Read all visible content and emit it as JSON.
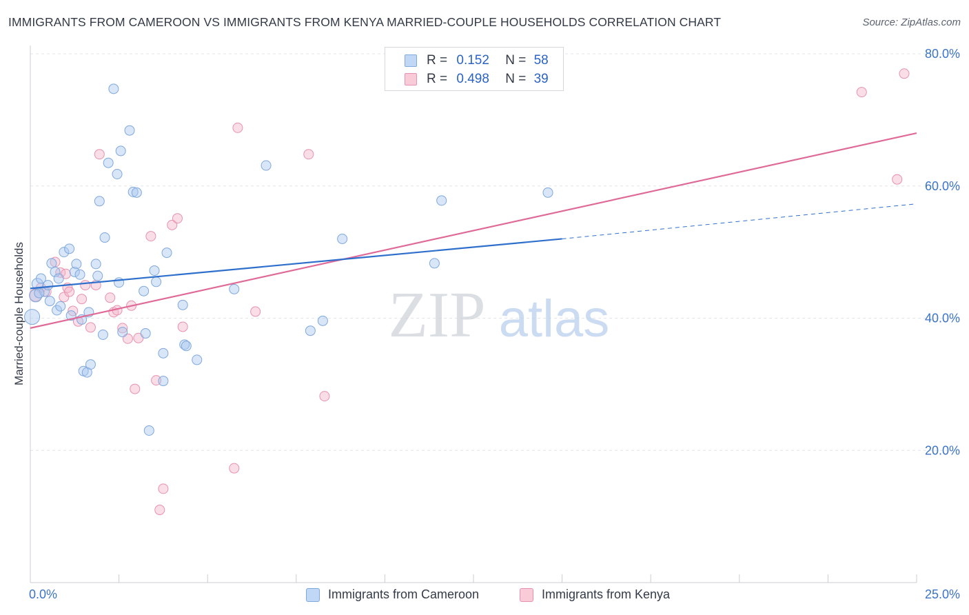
{
  "title": "IMMIGRANTS FROM CAMEROON VS IMMIGRANTS FROM KENYA MARRIED-COUPLE HOUSEHOLDS CORRELATION CHART",
  "source": "Source: ZipAtlas.com",
  "watermark": {
    "zip": "ZIP",
    "atlas": "atlas"
  },
  "legend": {
    "r_label": "R =",
    "n_label": "N =",
    "cameroon": {
      "r": "0.152",
      "n": "58"
    },
    "kenya": {
      "r": "0.498",
      "n": "39"
    }
  },
  "bottom_legend": {
    "cameroon": "Immigrants from Cameroon",
    "kenya": "Immigrants from Kenya"
  },
  "colors": {
    "cameroon_fill": "#a9c8f0",
    "cameroon_stroke": "#7fa8dc",
    "cameroon_line": "#2e6fcc",
    "kenya_fill": "#f5b6ca",
    "kenya_stroke": "#e791ae",
    "kenya_line": "#e06a97",
    "tick_label": "#3b73c8",
    "grid": "#e2e5ea"
  },
  "chart_data": {
    "type": "scatter",
    "title": "IMMIGRANTS FROM CAMEROON VS IMMIGRANTS FROM KENYA MARRIED-COUPLE HOUSEHOLDS CORRELATION CHART",
    "xlabel": "",
    "ylabel": "Married-couple Households",
    "xlim": [
      0,
      25
    ],
    "ylim": [
      0,
      80
    ],
    "x_tick_labels": [
      {
        "value": 0,
        "label": "0.0%"
      },
      {
        "value": 25,
        "label": "25.0%"
      }
    ],
    "y_ticks": [
      {
        "value": 20,
        "label": "20.0%"
      },
      {
        "value": 40,
        "label": "40.0%"
      },
      {
        "value": 60,
        "label": "60.0%"
      },
      {
        "value": 80,
        "label": "80.0%"
      }
    ],
    "series": [
      {
        "name": "Immigrants from Cameroon",
        "r": 0.152,
        "n": 58,
        "trend": {
          "x0": 0,
          "y0": 44.5,
          "x1": 15,
          "y1": 52.0,
          "dash_to_x": 25,
          "dash_to_y": 57.3
        },
        "points": [
          [
            0.05,
            40.2,
            22
          ],
          [
            0.15,
            43.4,
            18
          ],
          [
            0.2,
            45.2,
            16
          ],
          [
            0.3,
            46.0,
            14
          ],
          [
            0.4,
            44.0,
            14
          ],
          [
            0.5,
            45.0,
            14
          ],
          [
            0.55,
            42.6,
            14
          ],
          [
            0.6,
            48.3,
            14
          ],
          [
            0.7,
            47.0,
            14
          ],
          [
            0.8,
            46.0,
            14
          ],
          [
            0.75,
            41.2,
            14
          ],
          [
            0.85,
            41.8,
            14
          ],
          [
            0.95,
            50.0,
            14
          ],
          [
            1.1,
            50.5,
            14
          ],
          [
            1.15,
            40.4,
            14
          ],
          [
            1.25,
            47.0,
            14
          ],
          [
            1.3,
            48.2,
            14
          ],
          [
            1.4,
            46.6,
            14
          ],
          [
            1.45,
            39.8,
            14
          ],
          [
            1.5,
            32.0,
            14
          ],
          [
            1.6,
            31.8,
            14
          ],
          [
            1.65,
            40.9,
            14
          ],
          [
            1.7,
            33.0,
            14
          ],
          [
            1.85,
            48.2,
            14
          ],
          [
            1.9,
            46.4,
            14
          ],
          [
            1.95,
            57.7,
            14
          ],
          [
            2.05,
            37.5,
            14
          ],
          [
            2.1,
            52.2,
            14
          ],
          [
            2.2,
            63.5,
            14
          ],
          [
            2.35,
            74.7,
            14
          ],
          [
            2.45,
            61.8,
            14
          ],
          [
            2.5,
            45.4,
            14
          ],
          [
            2.55,
            65.3,
            14
          ],
          [
            2.6,
            37.9,
            14
          ],
          [
            2.8,
            68.4,
            14
          ],
          [
            2.9,
            59.1,
            14
          ],
          [
            3.0,
            59.0,
            14
          ],
          [
            3.2,
            44.1,
            14
          ],
          [
            3.25,
            37.7,
            14
          ],
          [
            3.35,
            23.0,
            14
          ],
          [
            3.5,
            47.2,
            14
          ],
          [
            3.55,
            45.5,
            14
          ],
          [
            3.75,
            34.7,
            14
          ],
          [
            3.75,
            30.5,
            14
          ],
          [
            3.85,
            49.9,
            14
          ],
          [
            4.3,
            42.0,
            14
          ],
          [
            4.35,
            36.0,
            14
          ],
          [
            4.4,
            35.8,
            14
          ],
          [
            4.7,
            33.7,
            14
          ],
          [
            5.75,
            44.4,
            14
          ],
          [
            6.65,
            63.1,
            14
          ],
          [
            7.9,
            38.1,
            14
          ],
          [
            8.25,
            39.6,
            14
          ],
          [
            8.8,
            52.0,
            14
          ],
          [
            11.4,
            48.3,
            14
          ],
          [
            11.6,
            57.8,
            14
          ],
          [
            14.6,
            59.0,
            14
          ],
          [
            0.25,
            43.8,
            14
          ]
        ]
      },
      {
        "name": "Immigrants from Kenya",
        "r": 0.498,
        "n": 39,
        "trend": {
          "x0": 0,
          "y0": 38.5,
          "x1": 25,
          "y1": 68.0
        },
        "points": [
          [
            0.15,
            43.5,
            18
          ],
          [
            0.3,
            44.6,
            14
          ],
          [
            0.45,
            44.0,
            14
          ],
          [
            0.7,
            48.5,
            14
          ],
          [
            0.85,
            46.9,
            14
          ],
          [
            0.95,
            43.2,
            14
          ],
          [
            1.0,
            46.7,
            14
          ],
          [
            1.05,
            44.6,
            14
          ],
          [
            1.1,
            44.0,
            14
          ],
          [
            1.2,
            41.1,
            14
          ],
          [
            1.35,
            39.5,
            14
          ],
          [
            1.45,
            42.9,
            14
          ],
          [
            1.55,
            45.0,
            14
          ],
          [
            1.7,
            38.6,
            14
          ],
          [
            1.85,
            45.0,
            14
          ],
          [
            1.95,
            64.8,
            14
          ],
          [
            2.25,
            43.1,
            14
          ],
          [
            2.35,
            40.9,
            14
          ],
          [
            2.45,
            41.2,
            14
          ],
          [
            2.6,
            38.5,
            14
          ],
          [
            2.75,
            36.9,
            14
          ],
          [
            2.85,
            41.9,
            14
          ],
          [
            2.95,
            29.3,
            14
          ],
          [
            3.05,
            37.0,
            14
          ],
          [
            3.4,
            52.4,
            14
          ],
          [
            3.55,
            30.6,
            14
          ],
          [
            3.65,
            11.0,
            14
          ],
          [
            3.75,
            14.2,
            14
          ],
          [
            4.0,
            54.1,
            14
          ],
          [
            4.15,
            55.1,
            14
          ],
          [
            4.3,
            38.7,
            14
          ],
          [
            5.75,
            17.3,
            14
          ],
          [
            5.85,
            68.8,
            14
          ],
          [
            6.35,
            41.0,
            14
          ],
          [
            7.85,
            64.8,
            14
          ],
          [
            8.3,
            28.2,
            14
          ],
          [
            23.45,
            74.2,
            14
          ],
          [
            24.45,
            61.0,
            14
          ],
          [
            24.65,
            77.0,
            14
          ]
        ]
      }
    ]
  }
}
